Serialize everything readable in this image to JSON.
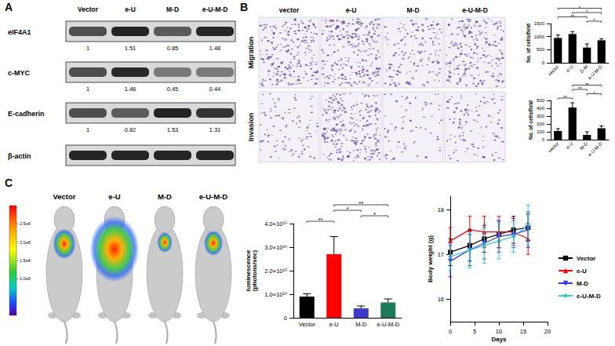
{
  "figure": {
    "A": {
      "label": "A",
      "columns": [
        "Vector",
        "e-U",
        "M-D",
        "e-U-M-D"
      ],
      "rows": [
        {
          "name": "eIF4A1",
          "values": [
            1,
            1.51,
            0.85,
            1.48
          ]
        },
        {
          "name": "c-MYC",
          "values": [
            1,
            1.46,
            0.45,
            0.44
          ]
        },
        {
          "name": "E-cadherin",
          "values": [
            1,
            0.82,
            1.53,
            1.31
          ]
        },
        {
          "name": "β-actin"
        }
      ]
    },
    "B": {
      "label": "B",
      "columns": [
        "vector",
        "e-U",
        "M-D",
        "e-U-M-D"
      ],
      "rows": [
        "Migration",
        "Invasion"
      ]
    },
    "C": {
      "label": "C",
      "columns": [
        "Vector",
        "e-U",
        "M-D",
        "e-U-M-D"
      ],
      "colorbar": {
        "range": [
          0,
          3000000
        ],
        "ticks": [
          {
            "value": 1000000,
            "label": "1.0e6"
          },
          {
            "value": 1500000,
            "label": "1.5e6"
          },
          {
            "value": 2000000,
            "label": "2.0e6"
          },
          {
            "value": 2500000,
            "label": "2.5e6"
          }
        ]
      }
    }
  },
  "chart_data": [
    {
      "type": "bar",
      "ylabel": "No. of cells/field",
      "categories": [
        "vector",
        "e-U",
        "D-M",
        "e-U-M-D"
      ],
      "values": [
        950,
        1100,
        580,
        860
      ],
      "errors": [
        110,
        90,
        140,
        60
      ],
      "color": "#000000",
      "ylim": [
        0,
        1500
      ],
      "yticks": [
        0,
        500,
        1000,
        1500
      ],
      "grid": false,
      "significance": [
        {
          "from": "D-M",
          "to": "e-U-M-D",
          "label": "*"
        },
        {
          "from": "vector",
          "to": "D-M",
          "label": "**"
        },
        {
          "from": "e-U",
          "to": "e-U-M-D",
          "label": "*"
        },
        {
          "from": "vector",
          "to": "e-U-M-D",
          "label": "*"
        }
      ]
    },
    {
      "type": "bar",
      "ylabel": "No. of cells/field",
      "categories": [
        "vector",
        "e-U",
        "M-D",
        "e-U-M-D"
      ],
      "values": [
        110,
        410,
        60,
        145
      ],
      "errors": [
        30,
        60,
        40,
        30
      ],
      "color": "#000000",
      "ylim": [
        0,
        500
      ],
      "yticks": [
        0,
        100,
        200,
        300,
        400,
        500
      ],
      "grid": false,
      "significance": [
        {
          "from": "vector",
          "to": "e-U",
          "label": "**"
        },
        {
          "from": "M-D",
          "to": "e-U-M-D",
          "label": "*"
        },
        {
          "from": "e-U",
          "to": "M-D",
          "label": "**"
        },
        {
          "from": "e-U",
          "to": "e-U-M-D",
          "label": "**"
        }
      ]
    },
    {
      "type": "bar",
      "ylabel": "luminescence\n(photons/sec)",
      "categories": [
        "Vector",
        "e-U",
        "M-D",
        "e-U-M-D"
      ],
      "values": [
        9000000000,
        27000000000,
        4000000000,
        6500000000
      ],
      "errors": [
        1200000000,
        7500000000,
        1000000000,
        1500000000
      ],
      "colors": [
        "#000000",
        "#ff0000",
        "#3a3acc",
        "#1a7a5a"
      ],
      "ylim": [
        0,
        40000000000
      ],
      "yticks": [
        0,
        {
          "value": 10000000000,
          "label": "1.0×10¹⁰"
        },
        {
          "value": 20000000000,
          "label": "2.0×10¹⁰"
        },
        {
          "value": 30000000000,
          "label": "3.0×10¹⁰"
        },
        {
          "value": 40000000000,
          "label": "4.0×10¹⁰"
        }
      ],
      "grid": false,
      "significance": [
        {
          "from": "Vector",
          "to": "e-U",
          "label": "**"
        },
        {
          "from": "M-D",
          "to": "e-U-M-D",
          "label": "*"
        },
        {
          "from": "e-U",
          "to": "M-D",
          "label": "*"
        },
        {
          "from": "e-U",
          "to": "e-U-M-D",
          "label": "**"
        }
      ]
    },
    {
      "type": "line",
      "xlabel": "Days",
      "ylabel": "Body weight (g)",
      "x": [
        0,
        4,
        7,
        10,
        13,
        16
      ],
      "xlim": [
        0,
        20
      ],
      "xticks": [
        0,
        5,
        10,
        15,
        20
      ],
      "ylim": [
        15.5,
        18.3
      ],
      "yticks": [
        16,
        17,
        18
      ],
      "grid": false,
      "legend": "right",
      "series": [
        {
          "name": "Vector",
          "color": "#000000",
          "marker": "square",
          "values": [
            17.05,
            17.2,
            17.35,
            17.45,
            17.55,
            17.6
          ],
          "errors": [
            0.3,
            0.35,
            0.3,
            0.3,
            0.3,
            0.3
          ]
        },
        {
          "name": "e-U",
          "color": "#ff0000",
          "marker": "triangle",
          "values": [
            17.3,
            17.55,
            17.5,
            17.5,
            17.5,
            17.35
          ],
          "errors": [
            0.3,
            0.3,
            0.35,
            0.35,
            0.3,
            0.35
          ]
        },
        {
          "name": "M-D",
          "color": "#3333ff",
          "marker": "triangle-down",
          "values": [
            16.85,
            17.1,
            17.25,
            17.4,
            17.45,
            17.55
          ],
          "errors": [
            0.35,
            0.35,
            0.35,
            0.35,
            0.3,
            0.4
          ]
        },
        {
          "name": "e-U-M-D",
          "color": "#33cccc",
          "marker": "diamond",
          "values": [
            16.95,
            17.1,
            17.2,
            17.3,
            17.4,
            17.65
          ],
          "errors": [
            0.3,
            0.4,
            0.4,
            0.4,
            0.35,
            0.45
          ]
        }
      ]
    }
  ]
}
